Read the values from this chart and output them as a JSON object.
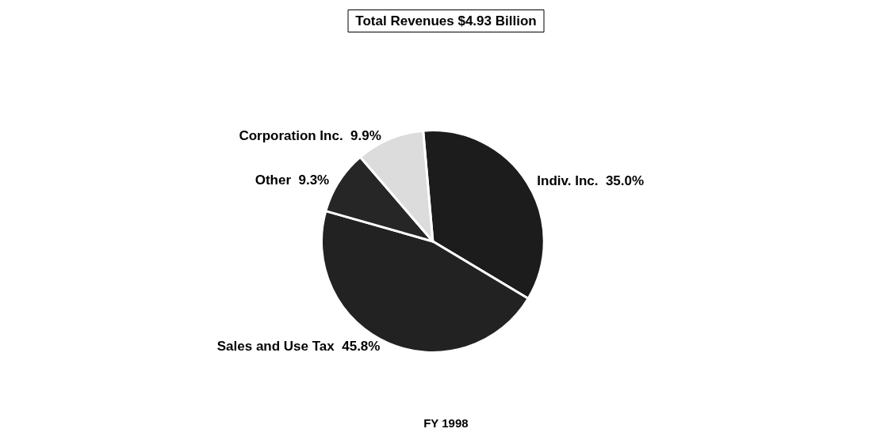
{
  "chart_data": {
    "type": "pie",
    "title": "Total Revenues $4.93 Billion",
    "categories": [
      "Indiv. Inc.",
      "Sales and Use Tax",
      "Other",
      "Corporation Inc."
    ],
    "values": [
      35.0,
      45.8,
      9.3,
      9.9
    ],
    "value_labels": [
      "35.0%",
      "45.8%",
      "9.3%",
      "9.9%"
    ],
    "colors": [
      "#1c1c1c",
      "#222222",
      "#262626",
      "#dcdcdc"
    ],
    "annotations": [
      "FY 1998"
    ]
  }
}
